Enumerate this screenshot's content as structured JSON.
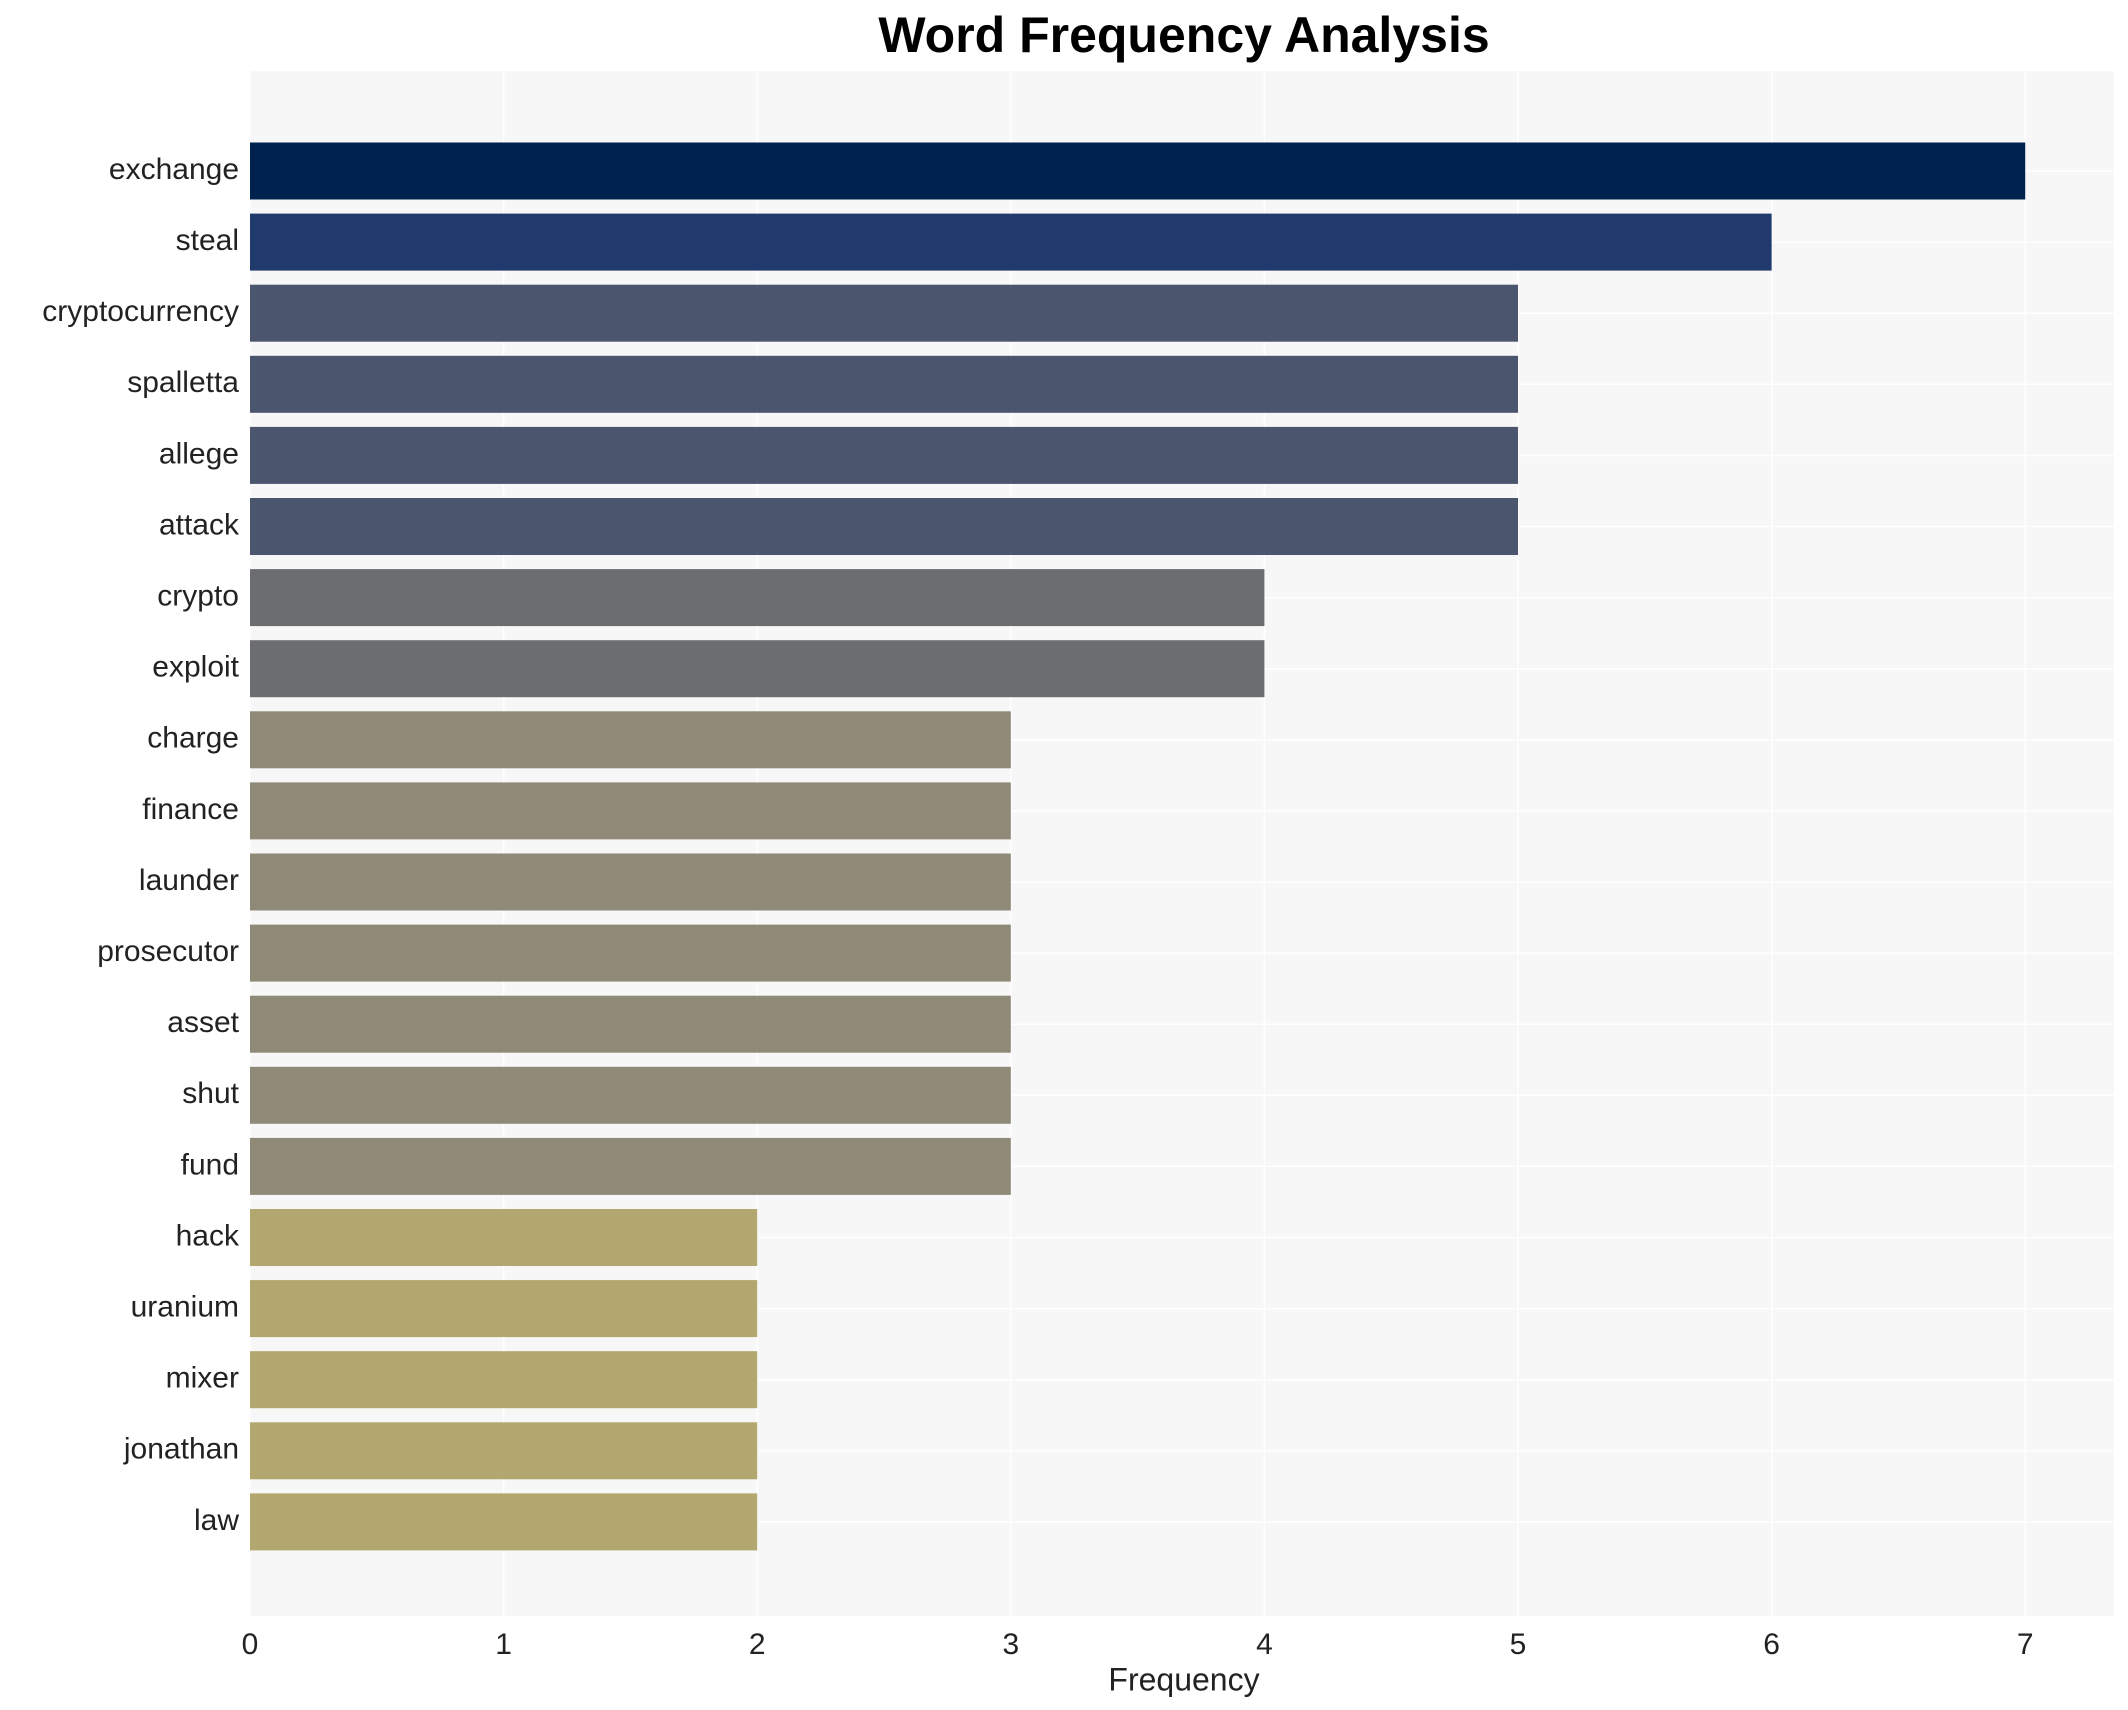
{
  "chart_data": {
    "type": "barh",
    "title": "Word Frequency Analysis",
    "x_label": "Frequency",
    "categories": [
      "exchange",
      "steal",
      "cryptocurrency",
      "spalletta",
      "allege",
      "attack",
      "crypto",
      "exploit",
      "charge",
      "finance",
      "launder",
      "prosecutor",
      "asset",
      "shut",
      "fund",
      "hack",
      "uranium",
      "mixer",
      "jonathan",
      "law"
    ],
    "values": [
      7,
      6,
      5,
      5,
      5,
      5,
      4,
      4,
      3,
      3,
      3,
      3,
      3,
      3,
      3,
      2,
      2,
      2,
      2,
      2
    ],
    "colors": [
      "#00224e",
      "#203a6d",
      "#4c556e",
      "#4c556e",
      "#4c556e",
      "#4c556e",
      "#6c6d71",
      "#6c6d71",
      "#8f8a78",
      "#8f8a78",
      "#8f8a78",
      "#8f8a78",
      "#8f8a78",
      "#8f8a78",
      "#8f8a78",
      "#b1a76f",
      "#b1a76f",
      "#b1a76f",
      "#b1a76f",
      "#b1a76f"
    ],
    "xlim": [
      0,
      7.35
    ],
    "xticks": [
      0,
      1,
      2,
      3,
      4,
      5,
      6,
      7
    ],
    "grid": true
  }
}
